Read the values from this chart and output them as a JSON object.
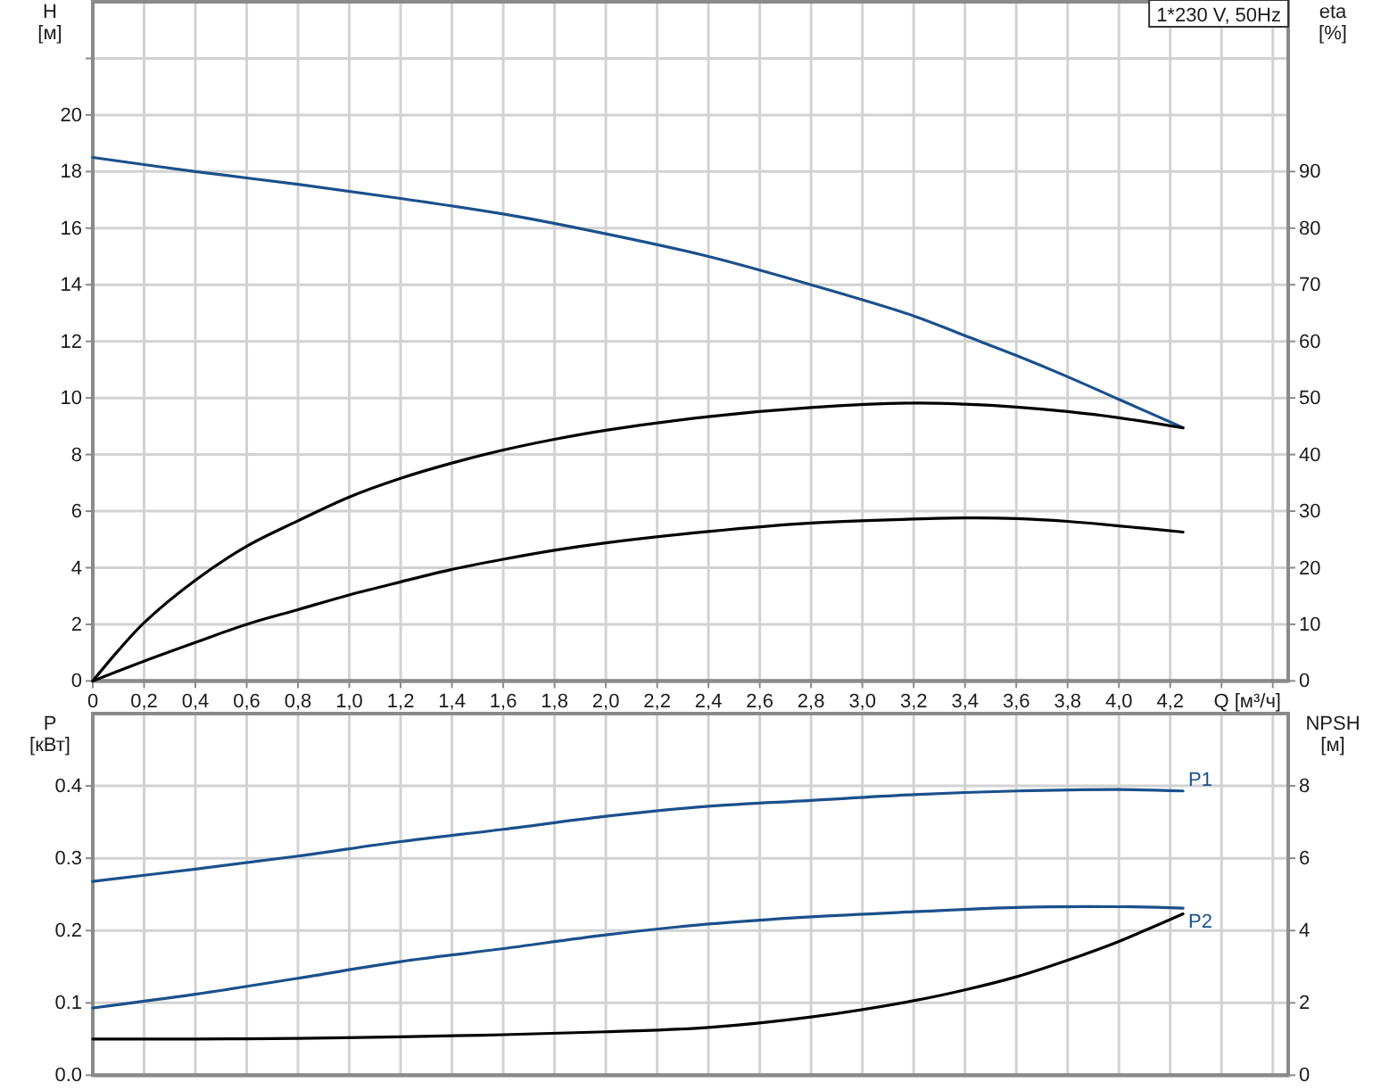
{
  "chart_data": [
    {
      "type": "line",
      "annotations": [
        "1*230 V, 50Hz"
      ],
      "xlabel": "Q [м³/ч]",
      "ylabel": "H [м]",
      "y2label": "eta [%]",
      "xlim": [
        0,
        4.66
      ],
      "xticks": [
        0,
        {
          "value": 0.2,
          "label": "0,2"
        },
        {
          "value": 0.4,
          "label": "0,4"
        },
        {
          "value": 0.6,
          "label": "0,6"
        },
        {
          "value": 0.8,
          "label": "0,8"
        },
        {
          "value": 1,
          "label": "1,0"
        },
        {
          "value": 1.2,
          "label": "1,2"
        },
        {
          "value": 1.4,
          "label": "1,4"
        },
        {
          "value": 1.6,
          "label": "1,6"
        },
        {
          "value": 1.8,
          "label": "1,8"
        },
        {
          "value": 2,
          "label": "2,0"
        },
        {
          "value": 2.2,
          "label": "2,2"
        },
        {
          "value": 2.4,
          "label": "2,4"
        },
        {
          "value": 2.6,
          "label": "2,6"
        },
        {
          "value": 2.8,
          "label": "2,8"
        },
        {
          "value": 3,
          "label": "3,0"
        },
        {
          "value": 3.2,
          "label": "3,2"
        },
        {
          "value": 3.4,
          "label": "3,4"
        },
        {
          "value": 3.6,
          "label": "3,6"
        },
        {
          "value": 3.8,
          "label": "3,8"
        },
        {
          "value": 4,
          "label": "4,0"
        },
        {
          "value": 4.2,
          "label": "4,2"
        },
        {
          "value": 4.4,
          "label": null
        },
        {
          "value": 4.6,
          "label": null
        }
      ],
      "ylim": [
        0,
        24
      ],
      "yticks": [
        0,
        2,
        4,
        6,
        8,
        10,
        12,
        14,
        16,
        18,
        20,
        {
          "value": 22,
          "label": null
        }
      ],
      "y2lim": [
        0,
        120
      ],
      "y2ticks": [
        0,
        10,
        20,
        30,
        40,
        50,
        60,
        70,
        80,
        90
      ],
      "grid": true,
      "series": [
        {
          "color": "#1a508c",
          "x": [
            0,
            0.4,
            0.8,
            1.2,
            1.6,
            2.0,
            2.4,
            2.8,
            3.2,
            3.4,
            3.6,
            3.8,
            4.0,
            4.25
          ],
          "values": [
            18.5,
            18.0,
            17.55,
            17.05,
            16.5,
            15.8,
            15.0,
            14.0,
            12.9,
            12.2,
            11.5,
            10.75,
            9.95,
            8.95
          ]
        },
        {
          "color": "#000000",
          "axis": "y2",
          "x": [
            0,
            0.1,
            0.2,
            0.4,
            0.6,
            0.8,
            1.0,
            1.2,
            1.4,
            1.6,
            1.8,
            2.0,
            2.4,
            2.8,
            3.2,
            3.4,
            3.6,
            3.8,
            4.0,
            4.25
          ],
          "values": [
            0,
            5.4,
            10.3,
            17.8,
            23.8,
            28.3,
            32.5,
            35.8,
            38.5,
            40.8,
            42.7,
            44.3,
            46.7,
            48.3,
            49.1,
            48.9,
            48.4,
            47.6,
            46.5,
            44.7
          ]
        },
        {
          "color": "#000000",
          "axis": "y2",
          "x": [
            0,
            0.2,
            0.4,
            0.6,
            0.8,
            1.0,
            1.2,
            1.4,
            1.6,
            1.8,
            2.0,
            2.4,
            2.8,
            3.2,
            3.4,
            3.6,
            3.8,
            4.0,
            4.25
          ],
          "values": [
            0,
            3.5,
            6.8,
            10.0,
            12.6,
            15.2,
            17.5,
            19.7,
            21.5,
            23.1,
            24.4,
            26.4,
            27.9,
            28.6,
            28.8,
            28.7,
            28.2,
            27.4,
            26.3
          ]
        }
      ]
    },
    {
      "type": "line",
      "ylabel": "P [кВт]",
      "y2label": "NPSH [м]",
      "tick_labels": "y",
      "xlim": [
        0,
        4.66
      ],
      "xticks": [
        {
          "value": 0,
          "label": null
        },
        {
          "value": 0.2,
          "label": null
        },
        {
          "value": 0.4,
          "label": null
        },
        {
          "value": 0.6,
          "label": null
        },
        {
          "value": 0.8,
          "label": null
        },
        {
          "value": 1,
          "label": null
        },
        {
          "value": 1.2,
          "label": null
        },
        {
          "value": 1.4,
          "label": null
        },
        {
          "value": 1.6,
          "label": null
        },
        {
          "value": 1.8,
          "label": null
        },
        {
          "value": 2,
          "label": null
        },
        {
          "value": 2.2,
          "label": null
        },
        {
          "value": 2.4,
          "label": null
        },
        {
          "value": 2.6,
          "label": null
        },
        {
          "value": 2.8,
          "label": null
        },
        {
          "value": 3,
          "label": null
        },
        {
          "value": 3.2,
          "label": null
        },
        {
          "value": 3.4,
          "label": null
        },
        {
          "value": 3.6,
          "label": null
        },
        {
          "value": 3.8,
          "label": null
        },
        {
          "value": 4,
          "label": null
        },
        {
          "value": 4.2,
          "label": null
        },
        {
          "value": 4.4,
          "label": null
        },
        {
          "value": 4.6,
          "label": null
        }
      ],
      "ylim": [
        0,
        0.5
      ],
      "yticks": [
        {
          "value": 0,
          "label": "0.0"
        },
        0.1,
        0.2,
        0.3,
        0.4
      ],
      "y2lim": [
        0,
        10
      ],
      "y2ticks": [
        0,
        2,
        4,
        6,
        8
      ],
      "grid": true,
      "series": [
        {
          "name": "P1",
          "color": "#1a508c",
          "x": [
            0,
            0.4,
            0.8,
            1.2,
            1.6,
            2.0,
            2.4,
            2.8,
            3.2,
            3.6,
            4.0,
            4.25
          ],
          "values": [
            0.268,
            0.285,
            0.303,
            0.323,
            0.34,
            0.358,
            0.372,
            0.38,
            0.388,
            0.393,
            0.395,
            0.393
          ]
        },
        {
          "name": "P2",
          "color": "#1a508c",
          "x": [
            0,
            0.4,
            0.8,
            1.2,
            1.6,
            2.0,
            2.4,
            2.8,
            3.2,
            3.6,
            4.0,
            4.25
          ],
          "values": [
            0.093,
            0.112,
            0.134,
            0.157,
            0.175,
            0.194,
            0.209,
            0.219,
            0.226,
            0.232,
            0.233,
            0.231
          ]
        },
        {
          "color": "#000000",
          "axis": "y2",
          "x": [
            0,
            0.4,
            0.8,
            1.2,
            1.6,
            2.0,
            2.4,
            2.8,
            3.2,
            3.4,
            3.6,
            3.8,
            4.0,
            4.1,
            4.25
          ],
          "values": [
            1.0,
            1.0,
            1.02,
            1.06,
            1.12,
            1.2,
            1.32,
            1.61,
            2.06,
            2.36,
            2.72,
            3.18,
            3.7,
            4.0,
            4.46
          ]
        }
      ]
    }
  ]
}
